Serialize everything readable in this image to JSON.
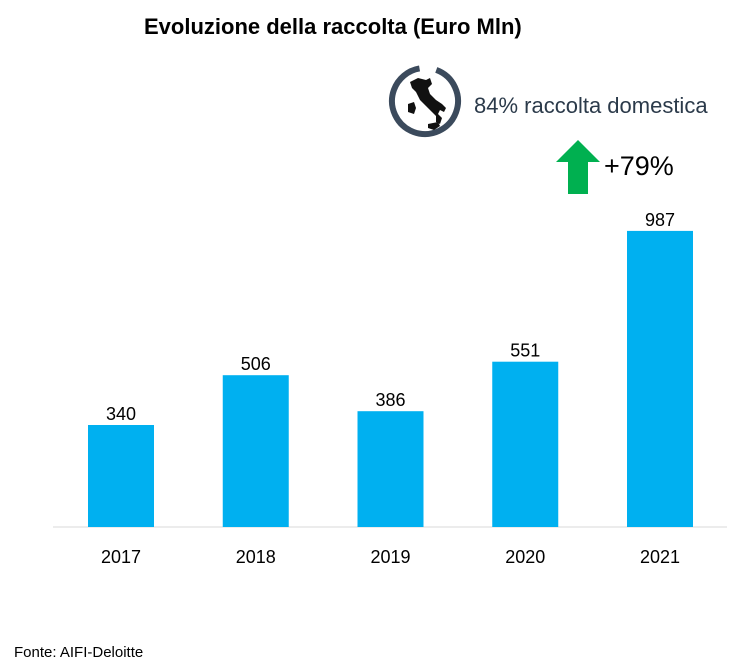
{
  "title": "Evoluzione della raccolta (Euro Mln)",
  "domestic_note": "84% raccolta domestica",
  "growth_label": "+79%",
  "source": "Fonte: AIFI-Deloitte",
  "colors": {
    "bar": "#00b0f0",
    "arrow": "#00b050",
    "ring": "#3b4a5c"
  },
  "icons": {
    "badge": "italy-map-icon",
    "arrow": "arrow-up-icon"
  },
  "chart_data": {
    "type": "bar",
    "title": "Evoluzione della raccolta (Euro Mln)",
    "categories": [
      "2017",
      "2018",
      "2019",
      "2020",
      "2021"
    ],
    "values": [
      340,
      506,
      386,
      551,
      987
    ],
    "xlabel": "",
    "ylabel": "",
    "ylim": [
      0,
      1000
    ],
    "grid": false,
    "legend": "none",
    "data_labels": true
  }
}
